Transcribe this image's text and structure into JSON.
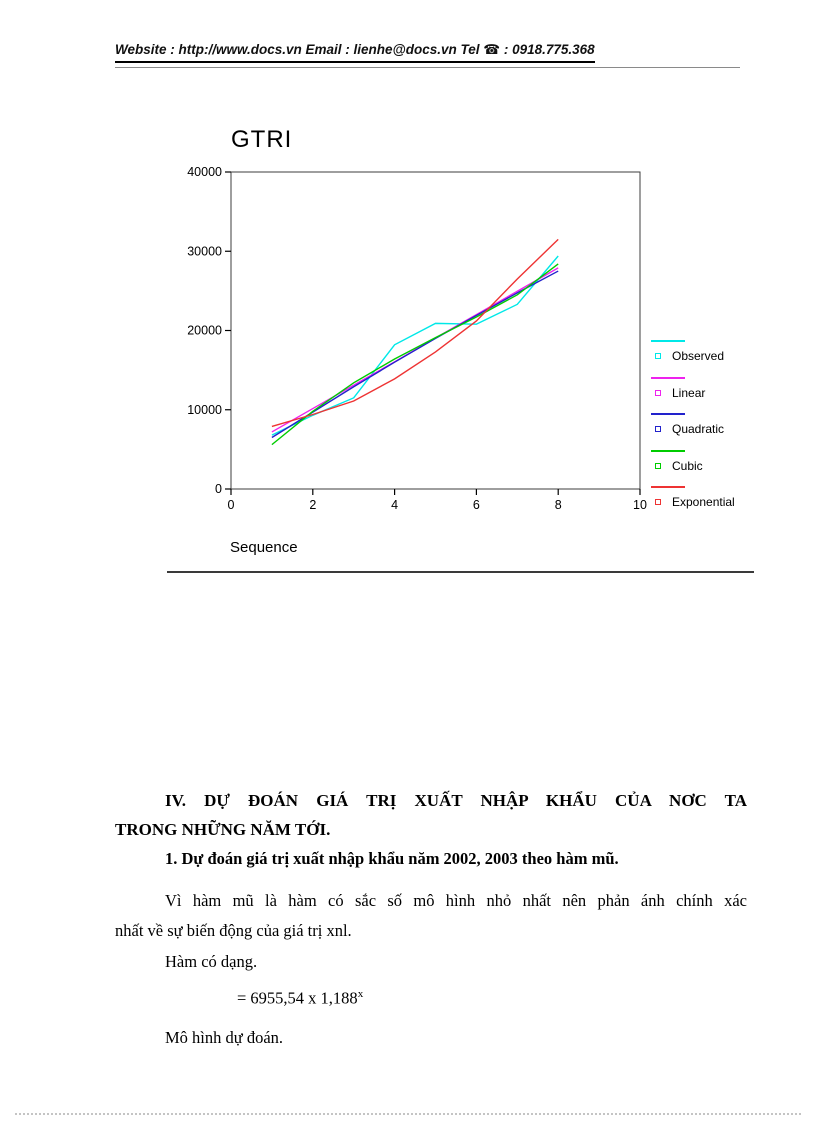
{
  "header": {
    "website_label": "Website",
    "website_value": " : http://www.docs.vn  ",
    "email_label": "Email",
    "email_value": "  : lienhe@docs.vn   ",
    "tel_label": "Tel",
    "phone_icon": "☎",
    "tel_value": " : 0918.775.368"
  },
  "chart_data": {
    "type": "line",
    "title": "GTRI",
    "xlabel": "Sequence",
    "xlim": [
      0,
      10
    ],
    "ylim": [
      0,
      40000
    ],
    "xticks": [
      0,
      2,
      4,
      6,
      8,
      10
    ],
    "yticks": [
      0,
      10000,
      20000,
      30000,
      40000
    ],
    "grid": false,
    "legend_position": "right",
    "x": [
      1,
      2,
      3,
      4,
      5,
      6,
      7,
      8
    ],
    "series": [
      {
        "name": "Observed",
        "color": "#00e8e8",
        "values": [
          6800,
          9300,
          11500,
          18200,
          20900,
          20800,
          23300,
          29400
        ]
      },
      {
        "name": "Linear",
        "color": "#ee22ee",
        "values": [
          7200,
          10150,
          13100,
          16050,
          19050,
          22000,
          24950,
          27900
        ]
      },
      {
        "name": "Quadratic",
        "color": "#2222cc",
        "values": [
          6500,
          9700,
          12900,
          16000,
          19000,
          21900,
          24750,
          27500
        ]
      },
      {
        "name": "Cubic",
        "color": "#00cc00",
        "values": [
          5600,
          9800,
          13400,
          16400,
          19100,
          21700,
          24500,
          28400
        ]
      },
      {
        "name": "Exponential",
        "color": "#ee3333",
        "values": [
          7900,
          9400,
          11100,
          13900,
          17300,
          21200,
          26500,
          31500
        ]
      }
    ]
  },
  "document": {
    "heading_line1": "IV. DỰ ĐOÁN GIÁ TRỊ XUẤT NHẬP KHẨU CỦA NƠC  TA",
    "heading_line2": "TRONG NHỮNG NĂM TỚI.",
    "subheading": "1. Dự đoán giá trị xuất nhập khẩu năm 2002, 2003 theo hàm mũ.",
    "para_line1": "Vì hàm mũ là hàm có sắc số mô hình nhỏ nhất nên phản ánh chính xác",
    "para_line2": "nhất về sự biến động của giá trị xnl.",
    "ham_co_dang": "Hàm có dạng.",
    "formula": {
      "base": "= 6955,54 x 1,188",
      "exp": "x"
    },
    "mo_hinh": "Mô hình dự đoán."
  }
}
